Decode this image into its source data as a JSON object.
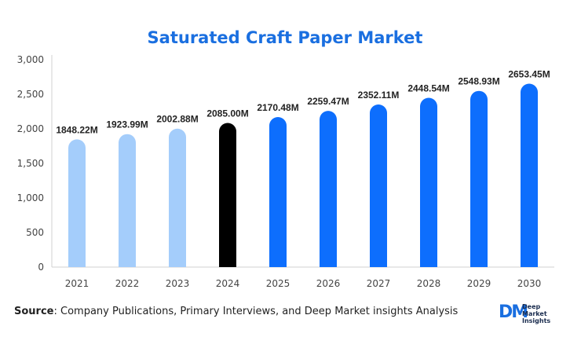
{
  "chart_data": {
    "type": "bar",
    "title": "Saturated Craft Paper Market",
    "categories": [
      "2021",
      "2022",
      "2023",
      "2024",
      "2025",
      "2026",
      "2027",
      "2028",
      "2029",
      "2030"
    ],
    "values": [
      1848.22,
      1923.99,
      2002.88,
      2085.0,
      2170.48,
      2259.47,
      2352.11,
      2448.54,
      2548.93,
      2653.45
    ],
    "data_labels": [
      "1848.22M",
      "1923.99M",
      "2002.88M",
      "2085.00M",
      "2170.48M",
      "2259.47M",
      "2352.11M",
      "2448.54M",
      "2548.93M",
      "2653.45M"
    ],
    "bar_colors": [
      "#a4cdfb",
      "#a4cdfb",
      "#a4cdfb",
      "#000000",
      "#0d6efd",
      "#0d6efd",
      "#0d6efd",
      "#0d6efd",
      "#0d6efd",
      "#0d6efd"
    ],
    "ylim": [
      0,
      3000
    ],
    "yticks": [
      0,
      500,
      1000,
      1500,
      2000,
      2500,
      3000
    ],
    "ytick_labels": [
      "0",
      "500",
      "1,000",
      "1,500",
      "2,000",
      "2,500",
      "3,000"
    ],
    "xlabel": "",
    "ylabel": "",
    "grid": false,
    "legend": "none"
  },
  "footer": {
    "source_label": "Source",
    "source_text": ": Company Publications, Primary Interviews, and Deep Market insights Analysis"
  },
  "brand": {
    "monogram": "DM",
    "line1": "Deep",
    "line2": "Market",
    "line3": "Insights"
  },
  "colors": {
    "title": "#1a6fe0",
    "historical": "#a4cdfb",
    "base_year": "#000000",
    "forecast": "#0d6efd"
  }
}
